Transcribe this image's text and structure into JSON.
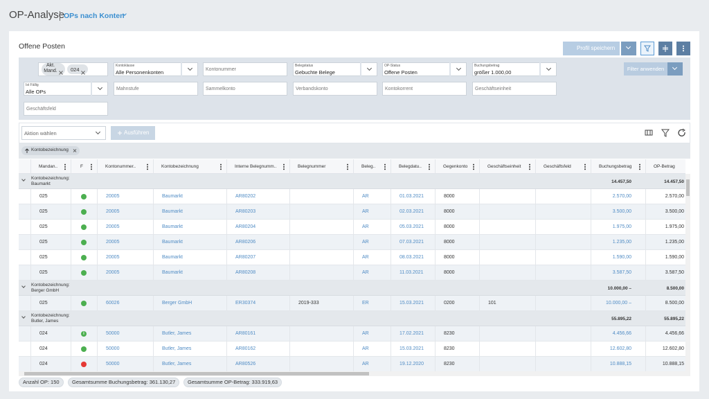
{
  "header": {
    "title": "OP-Analyse",
    "view": "OPs nach Konten"
  },
  "panel": {
    "title": "Offene Posten",
    "save_button": "Profil speichern"
  },
  "filters": {
    "mandant": {
      "label": "Akt. Mand.",
      "chip": "024"
    },
    "rows": [
      [
        {
          "label": "Kontoklasse",
          "value": "Alle Personenkonten",
          "dropdown": true
        },
        {
          "placeholder": "Kontonummer"
        },
        {
          "label": "Belegstatus",
          "value": "Gebuchte Belege",
          "dropdown": true
        },
        {
          "label": "OP-Status",
          "value": "Offene Posten",
          "dropdown": true
        },
        {
          "label": "Buchungsbetrag",
          "value": "größer 1.000,00",
          "dropdown": true
        }
      ],
      [
        {
          "label": "Ist Fällig",
          "value": "Alle OPs",
          "dropdown": true
        },
        {
          "placeholder": "Mahnstufe"
        },
        {
          "placeholder": "Sammelkonto"
        },
        {
          "placeholder": "Verbandskonto"
        },
        {
          "placeholder": "Kontokorrent"
        },
        {
          "placeholder": "Geschäftseinheit"
        }
      ],
      [
        {
          "placeholder": "Geschäftsfeld"
        }
      ]
    ],
    "apply_button": "Filter anwenden"
  },
  "grid": {
    "action_select": "Aktion wählen",
    "run_button": "Ausführen",
    "group_chip": "Kontobezeichnung",
    "columns": [
      {
        "label": "Mandan.."
      },
      {
        "label": "F"
      },
      {
        "label": "Kontonummer..",
        "color": "#4f8bc4"
      },
      {
        "label": "Kontobezeichnung",
        "color": "#4f8bc4"
      },
      {
        "label": "Interne Belegnumm..",
        "color": "#4f8bc4"
      },
      {
        "label": "Belegnummer"
      },
      {
        "label": "Beleg..",
        "color": "#4f8bc4"
      },
      {
        "label": "Belegdatu..",
        "color": "#4f8bc4"
      },
      {
        "label": "Gegenkonto"
      },
      {
        "label": "Geschäftseinheit"
      },
      {
        "label": "Geschäftsfeld"
      },
      {
        "label": "Buchungsbetrag",
        "color": "#4f8bc4",
        "align": "right"
      },
      {
        "label": "OP-Betrag",
        "align": "right"
      }
    ],
    "rows": [
      {
        "group": "Kontobezeichnung: Baumarkt",
        "buchungsbetrag": "14.457,50",
        "op_betrag": "14.457,50"
      },
      {
        "status_color": "#4caf50",
        "cells": [
          "025",
          null,
          "20005",
          "Baumarkt",
          "AR80202",
          null,
          "AR",
          "01.03.2021",
          "8000",
          null,
          null,
          "2.570,00",
          "2.570,00"
        ]
      },
      {
        "status_color": "#4caf50",
        "cells": [
          "025",
          null,
          "20005",
          "Baumarkt",
          "AR80203",
          null,
          "AR",
          "02.03.2021",
          "8000",
          null,
          null,
          "3.500,00",
          "3.500,00"
        ]
      },
      {
        "status_color": "#4caf50",
        "cells": [
          "025",
          null,
          "20005",
          "Baumarkt",
          "AR80204",
          null,
          "AR",
          "05.03.2021",
          "8000",
          null,
          null,
          "1.975,00",
          "1.975,00"
        ]
      },
      {
        "status_color": "#4caf50",
        "cells": [
          "025",
          null,
          "20005",
          "Baumarkt",
          "AR80206",
          null,
          "AR",
          "07.03.2021",
          "8000",
          null,
          null,
          "1.235,00",
          "1.235,00"
        ]
      },
      {
        "status_color": "#4caf50",
        "cells": [
          "025",
          null,
          "20005",
          "Baumarkt",
          "AR80207",
          null,
          "AR",
          "08.03.2021",
          "8000",
          null,
          null,
          "1.590,00",
          "1.590,00"
        ]
      },
      {
        "status_color": "#4caf50",
        "cells": [
          "025",
          null,
          "20005",
          "Baumarkt",
          "AR80208",
          null,
          "AR",
          "11.03.2021",
          "8000",
          null,
          null,
          "3.587,50",
          "3.587,50"
        ]
      },
      {
        "group": "Kontobezeichnung: Berger GmbH",
        "buchungsbetrag": "10.000,00 –",
        "op_betrag": "8.500,00"
      },
      {
        "status_color": "#4caf50",
        "cells": [
          "025",
          null,
          "60026",
          "Berger GmbH",
          "ER30374",
          "2019-333",
          "ER",
          "15.03.2021",
          "0200",
          "101",
          null,
          "10.000,00 –",
          "8.500,00"
        ]
      },
      {
        "group": "Kontobezeichnung: Butler, James",
        "buchungsbetrag": "55.895,22",
        "op_betrag": "55.895,22"
      },
      {
        "status_color": "#4caf50",
        "status_label": "i",
        "cells": [
          "024",
          null,
          "50000",
          "Butler, James",
          "AR80161",
          null,
          "AR",
          "17.02.2021",
          "8230",
          null,
          null,
          "4.456,66",
          "4.456,66"
        ]
      },
      {
        "status_color": "#4caf50",
        "cells": [
          "024",
          null,
          "50000",
          "Butler, James",
          "AR80162",
          null,
          "AR",
          "15.03.2021",
          "8230",
          null,
          null,
          "12.602,80",
          "12.602,80"
        ]
      },
      {
        "status_color": "#e53935",
        "cells": [
          "024",
          null,
          "50000",
          "Butler, James",
          "AR80526",
          null,
          "AR",
          "19.12.2020",
          "8230",
          null,
          null,
          "10.888,15",
          "10.888,15"
        ]
      }
    ]
  },
  "footer": {
    "chips": [
      "Anzahl OP: 150",
      "Gesamtsumme Buchungsbetrag: 361.130,27",
      "Gesamtsumme OP-Betrag: 333.919,63"
    ]
  }
}
